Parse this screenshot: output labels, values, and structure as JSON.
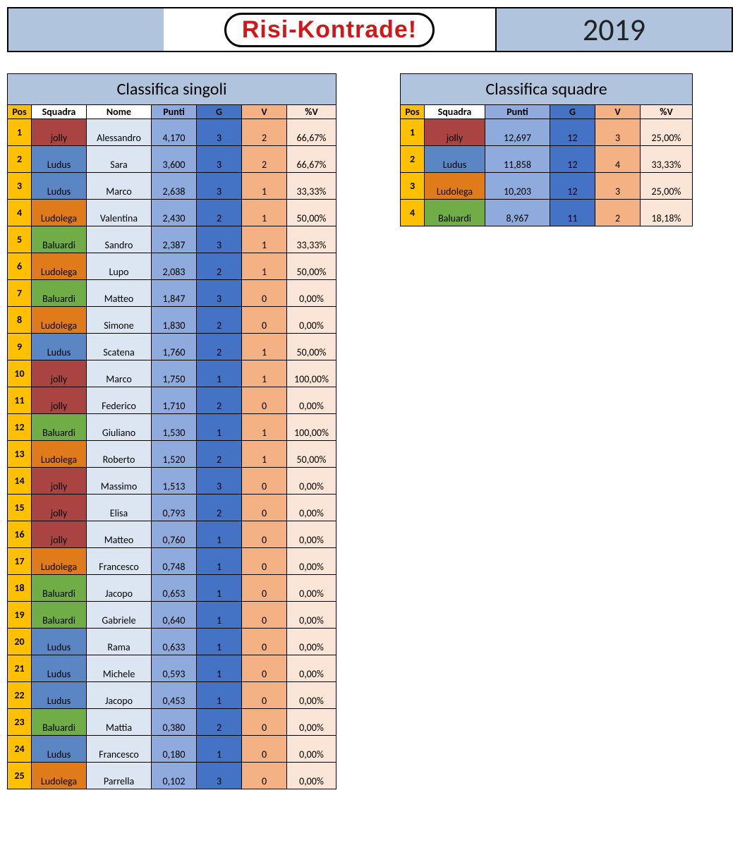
{
  "header": {
    "logo_text": "Risi-Kontrade!",
    "year": "2019"
  },
  "colors": {
    "header_blue": "#b0c4de",
    "pos_yellow": "#ffc000",
    "punti_blue": "#8faadc",
    "g_blue": "#4472c4",
    "v_orange": "#f4b183",
    "pv_peach": "#fbe5d6",
    "nome_lightblue": "#dce6f2",
    "logo_red": "#d01818"
  },
  "team_colors": {
    "jolly": "#a94442",
    "Ludus": "#5b86c4",
    "Ludolega": "#e07b1c",
    "Baluardi": "#70ad47"
  },
  "singoli": {
    "title": "Classifica singoli",
    "columns": [
      "Pos",
      "Squadra",
      "Nome",
      "Punti",
      "G",
      "V",
      "%V"
    ],
    "rows": [
      {
        "pos": "1",
        "squadra": "jolly",
        "nome": "Alessandro",
        "punti": "4,170",
        "g": "3",
        "v": "2",
        "pv": "66,67%"
      },
      {
        "pos": "2",
        "squadra": "Ludus",
        "nome": "Sara",
        "punti": "3,600",
        "g": "3",
        "v": "2",
        "pv": "66,67%"
      },
      {
        "pos": "3",
        "squadra": "Ludus",
        "nome": "Marco",
        "punti": "2,638",
        "g": "3",
        "v": "1",
        "pv": "33,33%"
      },
      {
        "pos": "4",
        "squadra": "Ludolega",
        "nome": "Valentina",
        "punti": "2,430",
        "g": "2",
        "v": "1",
        "pv": "50,00%"
      },
      {
        "pos": "5",
        "squadra": "Baluardi",
        "nome": "Sandro",
        "punti": "2,387",
        "g": "3",
        "v": "1",
        "pv": "33,33%"
      },
      {
        "pos": "6",
        "squadra": "Ludolega",
        "nome": "Lupo",
        "punti": "2,083",
        "g": "2",
        "v": "1",
        "pv": "50,00%"
      },
      {
        "pos": "7",
        "squadra": "Baluardi",
        "nome": "Matteo",
        "punti": "1,847",
        "g": "3",
        "v": "0",
        "pv": "0,00%"
      },
      {
        "pos": "8",
        "squadra": "Ludolega",
        "nome": "Simone",
        "punti": "1,830",
        "g": "2",
        "v": "0",
        "pv": "0,00%"
      },
      {
        "pos": "9",
        "squadra": "Ludus",
        "nome": "Scatena",
        "punti": "1,760",
        "g": "2",
        "v": "1",
        "pv": "50,00%"
      },
      {
        "pos": "10",
        "squadra": "jolly",
        "nome": "Marco",
        "punti": "1,750",
        "g": "1",
        "v": "1",
        "pv": "100,00%"
      },
      {
        "pos": "11",
        "squadra": "jolly",
        "nome": "Federico",
        "punti": "1,710",
        "g": "2",
        "v": "0",
        "pv": "0,00%"
      },
      {
        "pos": "12",
        "squadra": "Baluardi",
        "nome": "Giuliano",
        "punti": "1,530",
        "g": "1",
        "v": "1",
        "pv": "100,00%"
      },
      {
        "pos": "13",
        "squadra": "Ludolega",
        "nome": "Roberto",
        "punti": "1,520",
        "g": "2",
        "v": "1",
        "pv": "50,00%"
      },
      {
        "pos": "14",
        "squadra": "jolly",
        "nome": "Massimo",
        "punti": "1,513",
        "g": "3",
        "v": "0",
        "pv": "0,00%"
      },
      {
        "pos": "15",
        "squadra": "jolly",
        "nome": "Elisa",
        "punti": "0,793",
        "g": "2",
        "v": "0",
        "pv": "0,00%"
      },
      {
        "pos": "16",
        "squadra": "jolly",
        "nome": "Matteo",
        "punti": "0,760",
        "g": "1",
        "v": "0",
        "pv": "0,00%"
      },
      {
        "pos": "17",
        "squadra": "Ludolega",
        "nome": "Francesco",
        "punti": "0,748",
        "g": "1",
        "v": "0",
        "pv": "0,00%"
      },
      {
        "pos": "18",
        "squadra": "Baluardi",
        "nome": "Jacopo",
        "punti": "0,653",
        "g": "1",
        "v": "0",
        "pv": "0,00%"
      },
      {
        "pos": "19",
        "squadra": "Baluardi",
        "nome": "Gabriele",
        "punti": "0,640",
        "g": "1",
        "v": "0",
        "pv": "0,00%"
      },
      {
        "pos": "20",
        "squadra": "Ludus",
        "nome": "Rama",
        "punti": "0,633",
        "g": "1",
        "v": "0",
        "pv": "0,00%"
      },
      {
        "pos": "21",
        "squadra": "Ludus",
        "nome": "Michele",
        "punti": "0,593",
        "g": "1",
        "v": "0",
        "pv": "0,00%"
      },
      {
        "pos": "22",
        "squadra": "Ludus",
        "nome": "Jacopo",
        "punti": "0,453",
        "g": "1",
        "v": "0",
        "pv": "0,00%"
      },
      {
        "pos": "23",
        "squadra": "Baluardi",
        "nome": "Mattia",
        "punti": "0,380",
        "g": "2",
        "v": "0",
        "pv": "0,00%"
      },
      {
        "pos": "24",
        "squadra": "Ludus",
        "nome": "Francesco",
        "punti": "0,180",
        "g": "1",
        "v": "0",
        "pv": "0,00%"
      },
      {
        "pos": "25",
        "squadra": "Ludolega",
        "nome": "Parrella",
        "punti": "0,102",
        "g": "3",
        "v": "0",
        "pv": "0,00%"
      }
    ]
  },
  "squadre": {
    "title": "Classifica squadre",
    "columns": [
      "Pos",
      "Squadra",
      "Punti",
      "G",
      "V",
      "%V"
    ],
    "rows": [
      {
        "pos": "1",
        "squadra": "jolly",
        "punti": "12,697",
        "g": "12",
        "v": "3",
        "pv": "25,00%"
      },
      {
        "pos": "2",
        "squadra": "Ludus",
        "punti": "11,858",
        "g": "12",
        "v": "4",
        "pv": "33,33%"
      },
      {
        "pos": "3",
        "squadra": "Ludolega",
        "punti": "10,203",
        "g": "12",
        "v": "3",
        "pv": "25,00%"
      },
      {
        "pos": "4",
        "squadra": "Baluardi",
        "punti": "8,967",
        "g": "11",
        "v": "2",
        "pv": "18,18%"
      }
    ]
  }
}
